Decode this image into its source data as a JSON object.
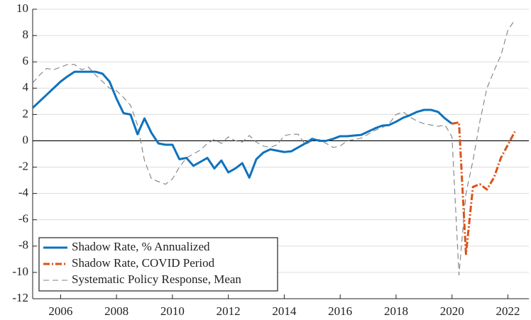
{
  "chart_data": {
    "type": "line",
    "xlim": [
      2005,
      2022.75
    ],
    "xticks": [
      2006,
      2008,
      2010,
      2012,
      2014,
      2016,
      2018,
      2020,
      2022
    ],
    "ylim": [
      -12,
      10
    ],
    "yticks": [
      -12,
      -10,
      -8,
      -6,
      -4,
      -2,
      0,
      2,
      4,
      6,
      8,
      10
    ],
    "grid": true,
    "zero_line": true,
    "legend": "lower left",
    "series": [
      {
        "name": "Shadow Rate, % Annualized",
        "color": "#0e72bd",
        "dash": "solid",
        "x": [
          2005,
          2005.25,
          2005.5,
          2005.75,
          2006,
          2006.25,
          2006.5,
          2006.75,
          2007,
          2007.25,
          2007.5,
          2007.75,
          2008,
          2008.25,
          2008.5,
          2008.75,
          2009,
          2009.25,
          2009.5,
          2009.75,
          2010,
          2010.25,
          2010.5,
          2010.75,
          2011,
          2011.25,
          2011.5,
          2011.75,
          2012,
          2012.25,
          2012.5,
          2012.75,
          2013,
          2013.25,
          2013.5,
          2013.75,
          2014,
          2014.25,
          2014.5,
          2014.75,
          2015,
          2015.25,
          2015.5,
          2015.75,
          2016,
          2016.25,
          2016.5,
          2016.75,
          2017,
          2017.25,
          2017.5,
          2017.75,
          2018,
          2018.25,
          2018.5,
          2018.75,
          2019,
          2019.25,
          2019.5,
          2019.75,
          2020
        ],
        "values": [
          2.5,
          3.0,
          3.5,
          4.0,
          4.5,
          4.9,
          5.25,
          5.25,
          5.25,
          5.25,
          5.1,
          4.5,
          3.2,
          2.1,
          2.0,
          0.5,
          1.7,
          0.6,
          -0.2,
          -0.3,
          -0.3,
          -1.4,
          -1.3,
          -1.9,
          -1.6,
          -1.3,
          -2.1,
          -1.5,
          -2.4,
          -2.1,
          -1.7,
          -2.8,
          -1.4,
          -0.9,
          -0.65,
          -0.75,
          -0.85,
          -0.8,
          -0.5,
          -0.2,
          0.15,
          0.0,
          0.0,
          0.15,
          0.35,
          0.35,
          0.4,
          0.45,
          0.7,
          0.95,
          1.15,
          1.2,
          1.45,
          1.75,
          1.95,
          2.2,
          2.35,
          2.35,
          2.2,
          1.7,
          1.3
        ]
      },
      {
        "name": "Shadow Rate, COVID Period",
        "color": "#d95319",
        "dash": "dashdot",
        "x": [
          2020,
          2020.25,
          2020.5,
          2020.75,
          2021,
          2021.25,
          2021.5,
          2021.75,
          2022,
          2022.25
        ],
        "values": [
          1.3,
          1.4,
          -8.6,
          -3.5,
          -3.3,
          -3.7,
          -2.8,
          -1.3,
          -0.3,
          0.7
        ]
      },
      {
        "name": "Systematic Policy Response, Mean",
        "color": "#808080",
        "dash": "dashed",
        "x": [
          2005,
          2005.25,
          2005.5,
          2005.75,
          2006,
          2006.25,
          2006.5,
          2006.75,
          2007,
          2007.25,
          2007.5,
          2007.75,
          2008,
          2008.25,
          2008.5,
          2008.75,
          2009,
          2009.25,
          2009.5,
          2009.75,
          2010,
          2010.25,
          2010.5,
          2010.75,
          2011,
          2011.25,
          2011.5,
          2011.75,
          2012,
          2012.25,
          2012.5,
          2012.75,
          2013,
          2013.25,
          2013.5,
          2013.75,
          2014,
          2014.25,
          2014.5,
          2014.75,
          2015,
          2015.25,
          2015.5,
          2015.75,
          2016,
          2016.25,
          2016.5,
          2016.75,
          2017,
          2017.25,
          2017.5,
          2017.75,
          2018,
          2018.25,
          2018.5,
          2018.75,
          2019,
          2019.25,
          2019.5,
          2019.75,
          2020,
          2020.25,
          2020.5,
          2020.75,
          2021,
          2021.25,
          2021.5,
          2021.75,
          2022,
          2022.25
        ],
        "values": [
          4.4,
          5.0,
          5.5,
          5.4,
          5.6,
          5.8,
          5.8,
          5.4,
          5.6,
          5.0,
          4.5,
          4.0,
          3.8,
          3.3,
          2.7,
          1.2,
          -1.5,
          -2.9,
          -3.1,
          -3.3,
          -2.9,
          -2.0,
          -1.3,
          -1.0,
          -0.7,
          -0.2,
          0.1,
          -0.2,
          0.3,
          0.0,
          -0.1,
          0.4,
          -0.1,
          -0.4,
          -0.5,
          -0.3,
          0.4,
          0.5,
          0.5,
          -0.3,
          0.0,
          0.1,
          -0.2,
          -0.5,
          -0.4,
          0.0,
          0.1,
          0.2,
          0.5,
          0.8,
          1.0,
          1.3,
          2.0,
          2.2,
          1.8,
          1.5,
          1.3,
          1.2,
          1.1,
          1.2,
          0.3,
          -10.2,
          -4.0,
          -1.5,
          1.5,
          4.0,
          5.3,
          6.5,
          8.4,
          9.2
        ]
      }
    ]
  }
}
